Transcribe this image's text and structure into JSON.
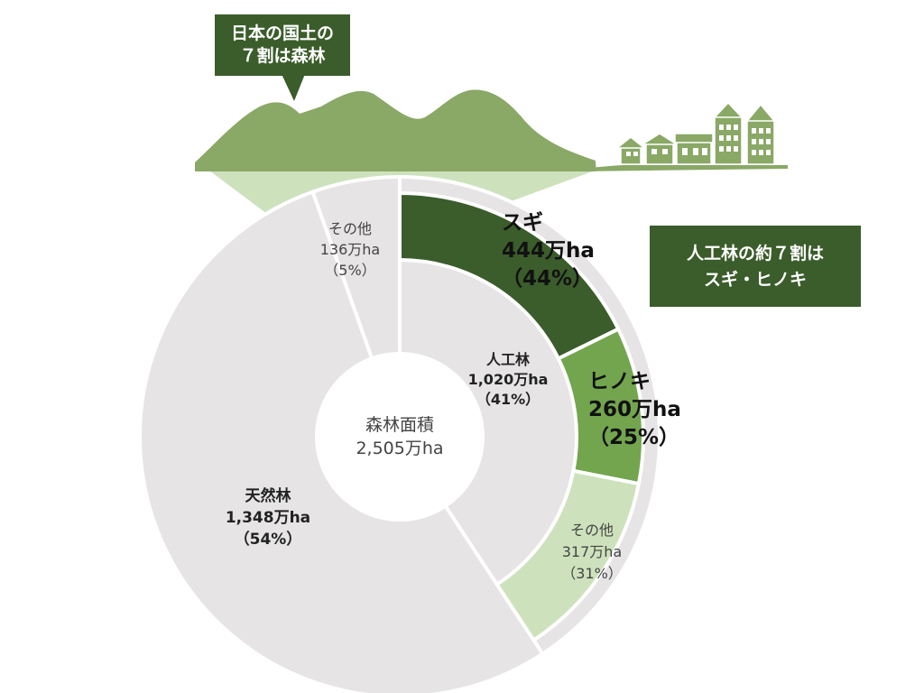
{
  "callouts": {
    "top": [
      "日本の国土の",
      "７割は森林"
    ],
    "right": [
      "人工林の約７割は",
      "スギ・ヒノキ"
    ]
  },
  "center": {
    "title": "森林面積",
    "value": "2,505万ha"
  },
  "colors": {
    "dark_green": "#3b5c2b",
    "mid_green": "#73a54f",
    "light_green": "#cde2bc",
    "mountain_green": "#8aa866",
    "gray": "#e6e4e4",
    "separator": "#ffffff"
  },
  "chart_data": [
    {
      "type": "pie",
      "ring": "inner",
      "total_label": "2,505万ha",
      "slices": [
        {
          "name": "人工林",
          "value": 1020,
          "value_label": "1,020万ha",
          "pct_label": "（41%）"
        },
        {
          "name": "天然林",
          "value": 1348,
          "value_label": "1,348万ha",
          "pct_label": "（54%）"
        },
        {
          "name": "その他",
          "value": 136,
          "value_label": "136万ha",
          "pct_label": "（5%）"
        }
      ]
    },
    {
      "type": "pie",
      "ring": "outer",
      "parent": "人工林",
      "slices": [
        {
          "name": "スギ",
          "value": 444,
          "value_label": "444万ha",
          "pct_label": "（44%）"
        },
        {
          "name": "ヒノキ",
          "value": 260,
          "value_label": "260万ha",
          "pct_label": "（25%）"
        },
        {
          "name": "その他",
          "value": 317,
          "value_label": "317万ha",
          "pct_label": "（31%）"
        }
      ]
    }
  ]
}
